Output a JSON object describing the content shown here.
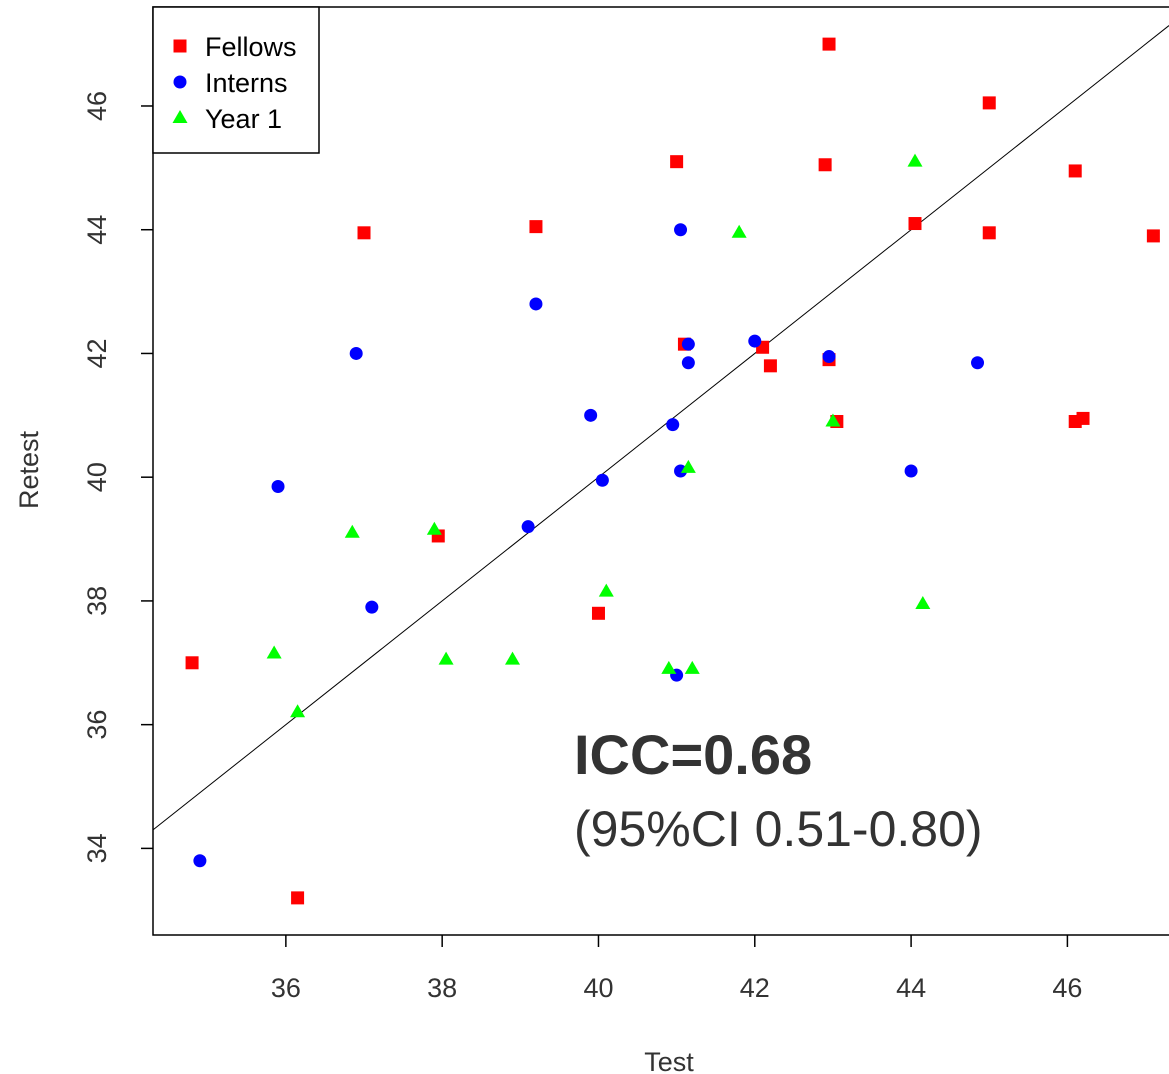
{
  "chart_data": {
    "type": "scatter",
    "xlabel": "Test",
    "ylabel": "Retest",
    "xlim": [
      34.3,
      47.3
    ],
    "ylim": [
      32.6,
      47.6
    ],
    "x_ticks": [
      36,
      38,
      40,
      42,
      44,
      46
    ],
    "y_ticks": [
      34,
      36,
      38,
      40,
      42,
      44,
      46
    ],
    "legend_position": "top-left",
    "grid": false,
    "series": [
      {
        "name": "Fellows",
        "marker": "square",
        "color": "#ff0000",
        "points": [
          [
            34.8,
            37.0
          ],
          [
            36.15,
            33.2
          ],
          [
            37.0,
            43.95
          ],
          [
            37.95,
            39.05
          ],
          [
            39.2,
            44.05
          ],
          [
            40.0,
            37.8
          ],
          [
            41.0,
            45.1
          ],
          [
            41.1,
            42.15
          ],
          [
            42.1,
            42.1
          ],
          [
            42.2,
            41.8
          ],
          [
            42.9,
            45.05
          ],
          [
            42.95,
            47.0
          ],
          [
            42.95,
            41.9
          ],
          [
            43.05,
            40.9
          ],
          [
            44.05,
            44.1
          ],
          [
            45.0,
            46.05
          ],
          [
            45.0,
            43.95
          ],
          [
            46.1,
            44.95
          ],
          [
            46.1,
            40.9
          ],
          [
            46.2,
            40.95
          ],
          [
            47.1,
            43.9
          ]
        ]
      },
      {
        "name": "Interns",
        "marker": "circle",
        "color": "#0000ff",
        "points": [
          [
            34.9,
            33.8
          ],
          [
            35.9,
            39.85
          ],
          [
            36.9,
            42.0
          ],
          [
            37.1,
            37.9
          ],
          [
            39.1,
            39.2
          ],
          [
            39.2,
            42.8
          ],
          [
            39.9,
            41.0
          ],
          [
            40.05,
            39.95
          ],
          [
            40.95,
            40.85
          ],
          [
            41.0,
            36.8
          ],
          [
            41.05,
            44.0
          ],
          [
            41.05,
            40.1
          ],
          [
            41.15,
            42.15
          ],
          [
            41.15,
            41.85
          ],
          [
            42.0,
            42.2
          ],
          [
            42.95,
            41.95
          ],
          [
            44.0,
            40.1
          ],
          [
            44.85,
            41.85
          ]
        ]
      },
      {
        "name": "Year 1",
        "marker": "triangle",
        "color": "#00ff00",
        "points": [
          [
            35.85,
            37.15
          ],
          [
            36.15,
            36.2
          ],
          [
            36.85,
            39.1
          ],
          [
            37.9,
            39.15
          ],
          [
            38.05,
            37.05
          ],
          [
            38.9,
            37.05
          ],
          [
            40.1,
            38.15
          ],
          [
            40.9,
            36.9
          ],
          [
            41.15,
            40.15
          ],
          [
            41.2,
            36.9
          ],
          [
            41.8,
            43.95
          ],
          [
            43.0,
            40.9
          ],
          [
            44.05,
            45.1
          ],
          [
            44.15,
            37.95
          ]
        ]
      }
    ],
    "fit_line": {
      "intercept": 0,
      "slope": 1
    },
    "annotations": {
      "icc": "ICC=0.68",
      "ci": "(95%CI 0.51-0.80)"
    }
  }
}
